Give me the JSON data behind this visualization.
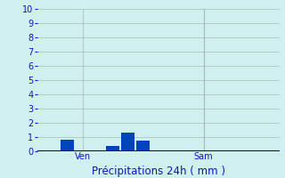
{
  "title": "Précipitations 24h ( mm )",
  "bar_positions": [
    2,
    5,
    6,
    7,
    8
  ],
  "bar_heights": [
    0.8,
    0.4,
    1.3,
    0.75,
    0.0
  ],
  "bar_color": "#0044bb",
  "bar_width": 0.85,
  "n_bars": 16,
  "xlim": [
    0,
    16
  ],
  "ylim": [
    0,
    10
  ],
  "yticks": [
    0,
    1,
    2,
    3,
    4,
    5,
    6,
    7,
    8,
    9,
    10
  ],
  "xtick_positions": [
    3,
    11
  ],
  "xtick_labels": [
    "Ven",
    "Sam"
  ],
  "day_line_x": 11,
  "background_color": "#cff0ee",
  "grid_color": "#aab8b8",
  "axis_line_color": "#0000aa",
  "text_color": "#1111cc",
  "title_fontsize": 8.5,
  "tick_fontsize": 7
}
